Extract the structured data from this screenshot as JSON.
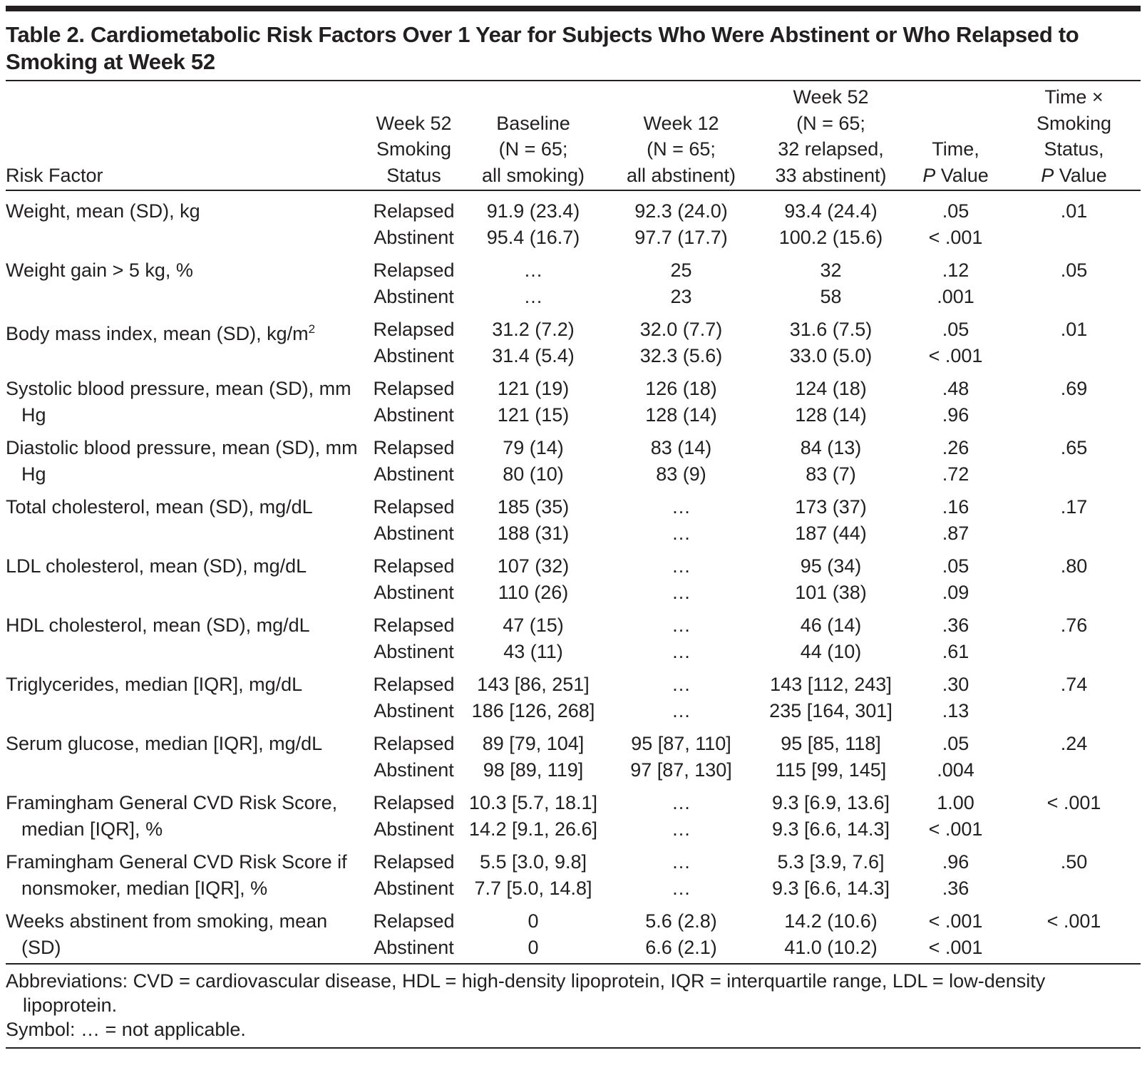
{
  "title": "Table 2. Cardiometabolic Risk Factors Over 1 Year for Subjects Who Were Abstinent or Who Relapsed to Smoking at Week 52",
  "headers": {
    "risk_factor": "Risk Factor",
    "status": [
      "Week 52",
      "Smoking",
      "Status"
    ],
    "baseline": [
      "Baseline",
      "(N = 65;",
      "all smoking)"
    ],
    "week12": [
      "Week 12",
      "(N = 65;",
      "all abstinent)"
    ],
    "week52": [
      "Week 52",
      "(N = 65;",
      "32 relapsed,",
      "33 abstinent)"
    ],
    "time_p": [
      "Time,",
      "P",
      " Value"
    ],
    "interaction_p": [
      "Time ×",
      "Smoking",
      "Status,",
      "P",
      " Value"
    ]
  },
  "rows": [
    {
      "label": "Weight, mean (SD), kg",
      "interaction_p": ".01",
      "data": [
        {
          "status": "Relapsed",
          "baseline": "91.9 (23.4)",
          "week12": "92.3 (24.0)",
          "week52": "93.4 (24.4)",
          "time_p": ".05"
        },
        {
          "status": "Abstinent",
          "baseline": "95.4 (16.7)",
          "week12": "97.7 (17.7)",
          "week52": "100.2 (15.6)",
          "time_p": "< .001"
        }
      ]
    },
    {
      "label": "Weight gain > 5 kg, %",
      "interaction_p": ".05",
      "data": [
        {
          "status": "Relapsed",
          "baseline": "…",
          "week12": "25",
          "week52": "32",
          "time_p": ".12"
        },
        {
          "status": "Abstinent",
          "baseline": "…",
          "week12": "23",
          "week52": "58",
          "time_p": ".001"
        }
      ]
    },
    {
      "label": "Body mass index, mean (SD), kg/m",
      "label_sup": "2",
      "interaction_p": ".01",
      "data": [
        {
          "status": "Relapsed",
          "baseline": "31.2 (7.2)",
          "week12": "32.0 (7.7)",
          "week52": "31.6 (7.5)",
          "time_p": ".05"
        },
        {
          "status": "Abstinent",
          "baseline": "31.4 (5.4)",
          "week12": "32.3 (5.6)",
          "week52": "33.0 (5.0)",
          "time_p": "< .001"
        }
      ]
    },
    {
      "label": "Systolic blood pressure, mean (SD), mm Hg",
      "interaction_p": ".69",
      "data": [
        {
          "status": "Relapsed",
          "baseline": "121 (19)",
          "week12": "126 (18)",
          "week52": "124 (18)",
          "time_p": ".48"
        },
        {
          "status": "Abstinent",
          "baseline": "121 (15)",
          "week12": "128 (14)",
          "week52": "128 (14)",
          "time_p": ".96"
        }
      ]
    },
    {
      "label": "Diastolic blood pressure, mean (SD), mm Hg",
      "interaction_p": ".65",
      "data": [
        {
          "status": "Relapsed",
          "baseline": "79 (14)",
          "week12": "83 (14)",
          "week52": "84 (13)",
          "time_p": ".26"
        },
        {
          "status": "Abstinent",
          "baseline": "80 (10)",
          "week12": "83 (9)",
          "week52": "83 (7)",
          "time_p": ".72"
        }
      ]
    },
    {
      "label": "Total cholesterol, mean (SD), mg/dL",
      "interaction_p": ".17",
      "data": [
        {
          "status": "Relapsed",
          "baseline": "185 (35)",
          "week12": "…",
          "week52": "173 (37)",
          "time_p": ".16"
        },
        {
          "status": "Abstinent",
          "baseline": "188 (31)",
          "week12": "…",
          "week52": "187 (44)",
          "time_p": ".87"
        }
      ]
    },
    {
      "label": "LDL cholesterol, mean (SD), mg/dL",
      "interaction_p": ".80",
      "data": [
        {
          "status": "Relapsed",
          "baseline": "107 (32)",
          "week12": "…",
          "week52": "95 (34)",
          "time_p": ".05"
        },
        {
          "status": "Abstinent",
          "baseline": "110 (26)",
          "week12": "…",
          "week52": "101 (38)",
          "time_p": ".09"
        }
      ]
    },
    {
      "label": "HDL cholesterol, mean (SD), mg/dL",
      "interaction_p": ".76",
      "data": [
        {
          "status": "Relapsed",
          "baseline": "47 (15)",
          "week12": "…",
          "week52": "46 (14)",
          "time_p": ".36"
        },
        {
          "status": "Abstinent",
          "baseline": "43 (11)",
          "week12": "…",
          "week52": "44 (10)",
          "time_p": ".61"
        }
      ]
    },
    {
      "label": "Triglycerides, median [IQR], mg/dL",
      "interaction_p": ".74",
      "data": [
        {
          "status": "Relapsed",
          "baseline": "143 [86, 251]",
          "week12": "…",
          "week52": "143 [112, 243]",
          "time_p": ".30"
        },
        {
          "status": "Abstinent",
          "baseline": "186 [126, 268]",
          "week12": "…",
          "week52": "235 [164, 301]",
          "time_p": ".13"
        }
      ]
    },
    {
      "label": "Serum glucose, median [IQR], mg/dL",
      "interaction_p": ".24",
      "data": [
        {
          "status": "Relapsed",
          "baseline": "89 [79, 104]",
          "week12": "95 [87, 110]",
          "week52": "95 [85, 118]",
          "time_p": ".05"
        },
        {
          "status": "Abstinent",
          "baseline": "98 [89, 119]",
          "week12": "97 [87, 130]",
          "week52": "115 [99, 145]",
          "time_p": ".004"
        }
      ]
    },
    {
      "label": "Framingham General CVD Risk Score, median [IQR], %",
      "interaction_p": "< .001",
      "data": [
        {
          "status": "Relapsed",
          "baseline": "10.3 [5.7, 18.1]",
          "week12": "…",
          "week52": "9.3 [6.9, 13.6]",
          "time_p": "1.00"
        },
        {
          "status": "Abstinent",
          "baseline": "14.2 [9.1, 26.6]",
          "week12": "…",
          "week52": "9.3 [6.6, 14.3]",
          "time_p": "< .001"
        }
      ]
    },
    {
      "label": "Framingham General CVD Risk Score if nonsmoker, median [IQR], %",
      "interaction_p": ".50",
      "data": [
        {
          "status": "Relapsed",
          "baseline": "5.5 [3.0, 9.8]",
          "week12": "…",
          "week52": "5.3 [3.9, 7.6]",
          "time_p": ".96"
        },
        {
          "status": "Abstinent",
          "baseline": "7.7 [5.0, 14.8]",
          "week12": "…",
          "week52": "9.3 [6.6, 14.3]",
          "time_p": ".36"
        }
      ]
    },
    {
      "label": "Weeks abstinent from smoking, mean (SD)",
      "interaction_p": "< .001",
      "data": [
        {
          "status": "Relapsed",
          "baseline": "0",
          "week12": "5.6 (2.8)",
          "week52": "14.2 (10.6)",
          "time_p": "< .001"
        },
        {
          "status": "Abstinent",
          "baseline": "0",
          "week12": "6.6 (2.1)",
          "week52": "41.0 (10.2)",
          "time_p": "< .001"
        }
      ]
    }
  ],
  "footnotes": {
    "abbreviations": "Abbreviations: CVD = cardiovascular disease, HDL = high-density lipoprotein, IQR = interquartile range, LDL = low-density lipoprotein.",
    "symbol": "Symbol: … = not applicable."
  }
}
